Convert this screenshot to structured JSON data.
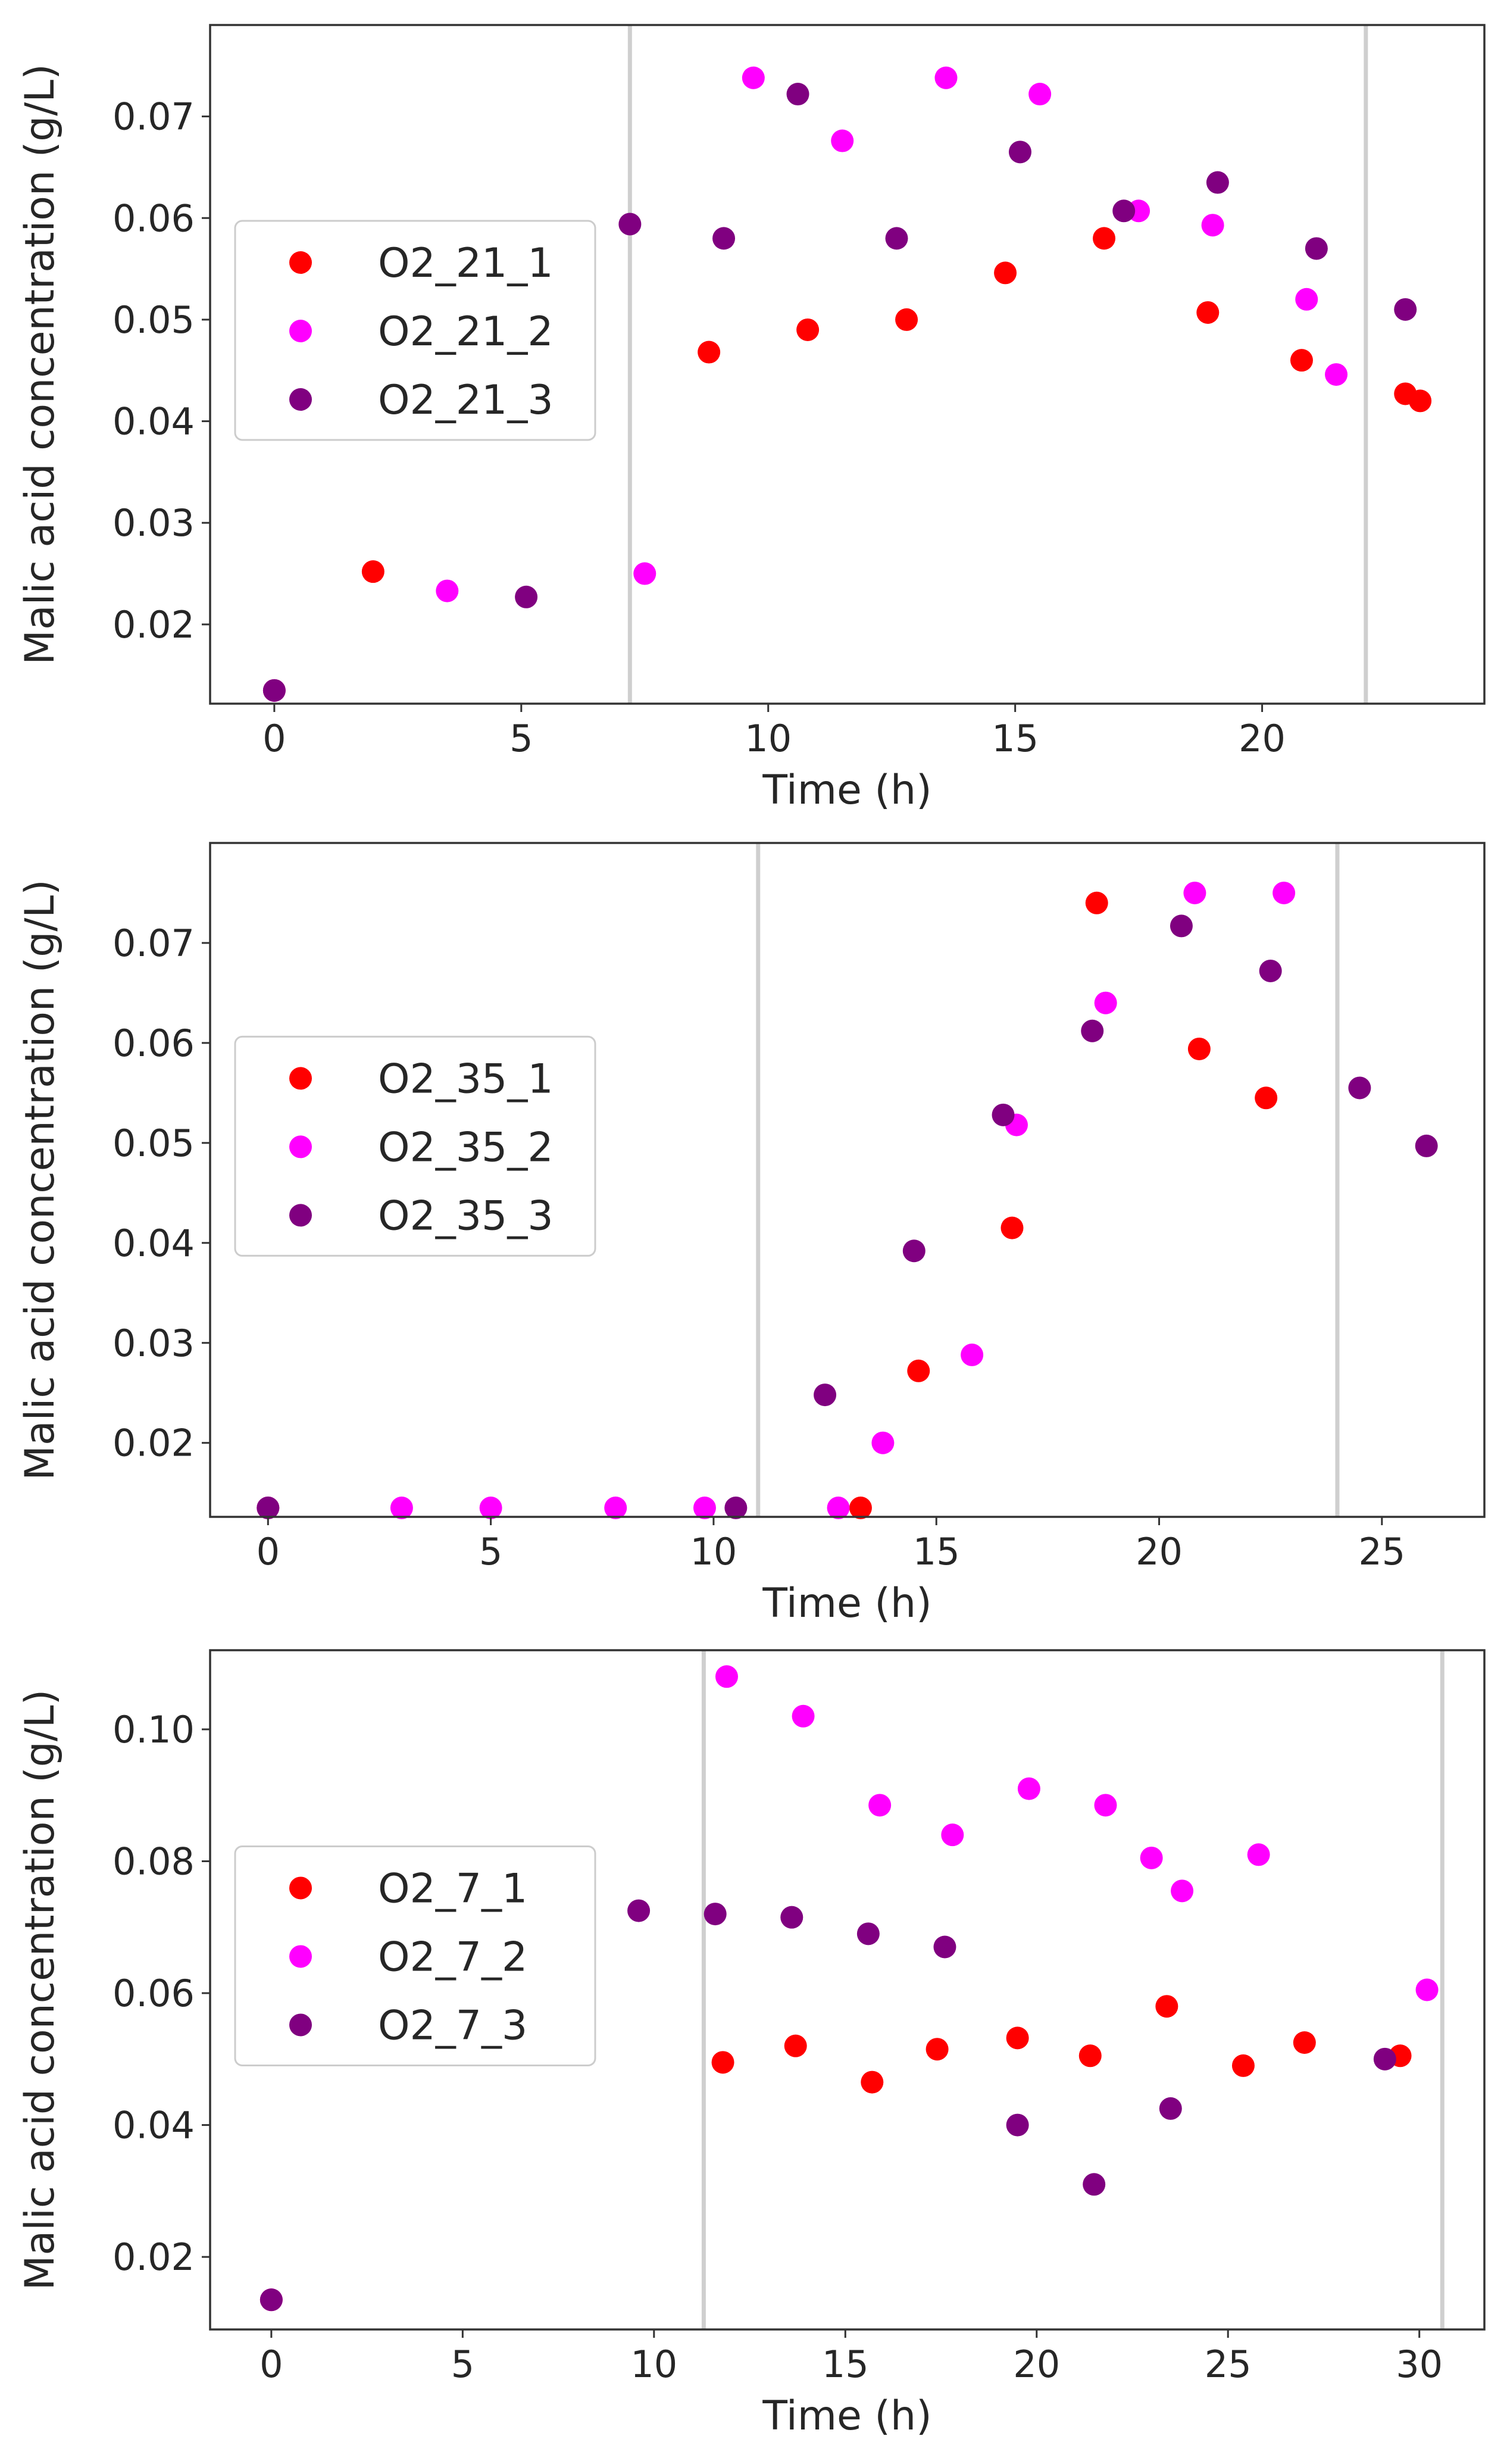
{
  "colors": {
    "series_1": "#ff0000",
    "series_2": "#ff00ff",
    "series_3": "#800080",
    "vline": "#cfcfcf"
  },
  "chart_data": [
    {
      "type": "scatter",
      "xlabel": "Time (h)",
      "ylabel": "Malic acid concentration (g/L)",
      "xlim": [
        -1.3,
        24.5
      ],
      "ylim": [
        0.0122,
        0.079
      ],
      "xticks": [
        0,
        5,
        10,
        15,
        20
      ],
      "xtick_labels": [
        "0",
        "5",
        "10",
        "15",
        "20"
      ],
      "yticks": [
        0.02,
        0.03,
        0.04,
        0.05,
        0.06,
        0.07
      ],
      "ytick_labels": [
        "0.02",
        "0.03",
        "0.04",
        "0.05",
        "0.06",
        "0.07"
      ],
      "vlines": [
        7.2,
        22.1
      ],
      "legend_position": "center-left",
      "series": [
        {
          "name": "O2_21_1",
          "color": "#ff0000",
          "x": [
            0,
            2,
            8.8,
            10.8,
            12.8,
            14.8,
            16.8,
            18.9,
            20.8,
            22.9,
            23.2
          ],
          "y": [
            0.0135,
            0.0252,
            0.0468,
            0.049,
            0.05,
            0.0546,
            0.058,
            0.0507,
            0.046,
            0.0427,
            0.042
          ]
        },
        {
          "name": "O2_21_2",
          "color": "#ff00ff",
          "x": [
            0,
            3.5,
            7.5,
            9.7,
            11.5,
            13.6,
            15.5,
            17.5,
            19.0,
            20.9,
            21.5
          ],
          "y": [
            0.0135,
            0.0233,
            0.025,
            0.0738,
            0.0676,
            0.0738,
            0.0722,
            0.0607,
            0.0593,
            0.052,
            0.0446
          ]
        },
        {
          "name": "O2_21_3",
          "color": "#800080",
          "x": [
            0,
            5.1,
            7.2,
            9.1,
            10.6,
            12.6,
            15.1,
            17.2,
            19.1,
            21.1,
            22.9
          ],
          "y": [
            0.0135,
            0.0227,
            0.0594,
            0.058,
            0.0722,
            0.058,
            0.0665,
            0.0607,
            0.0635,
            0.057,
            0.051
          ]
        }
      ]
    },
    {
      "type": "scatter",
      "xlabel": "Time (h)",
      "ylabel": "Malic acid concentration (g/L)",
      "xlim": [
        -1.3,
        27.3
      ],
      "ylim": [
        0.0126,
        0.08
      ],
      "xticks": [
        0,
        5,
        10,
        15,
        20,
        25
      ],
      "xtick_labels": [
        "0",
        "5",
        "10",
        "15",
        "20",
        "25"
      ],
      "yticks": [
        0.02,
        0.03,
        0.04,
        0.05,
        0.06,
        0.07
      ],
      "ytick_labels": [
        "0.02",
        "0.03",
        "0.04",
        "0.05",
        "0.06",
        "0.07"
      ],
      "vlines": [
        11.0,
        24.0
      ],
      "legend_position": "center-left",
      "series": [
        {
          "name": "O2_35_1",
          "color": "#ff0000",
          "x": [
            0,
            13.3,
            14.6,
            16.7,
            18.6,
            20.9,
            22.4
          ],
          "y": [
            0.0135,
            0.0135,
            0.0272,
            0.0415,
            0.074,
            0.0594,
            0.0545
          ]
        },
        {
          "name": "O2_35_2",
          "color": "#ff00ff",
          "x": [
            0,
            3,
            5,
            7.8,
            9.8,
            12.8,
            13.8,
            15.8,
            16.8,
            18.8,
            20.8,
            22.8
          ],
          "y": [
            0.0135,
            0.0135,
            0.0135,
            0.0135,
            0.0135,
            0.0135,
            0.02,
            0.0288,
            0.0518,
            0.064,
            0.075,
            0.075
          ]
        },
        {
          "name": "O2_35_3",
          "color": "#800080",
          "x": [
            0,
            10.5,
            12.5,
            14.5,
            16.5,
            18.5,
            20.5,
            22.5,
            24.5,
            26.0
          ],
          "y": [
            0.0135,
            0.0135,
            0.0248,
            0.0392,
            0.0528,
            0.0612,
            0.0717,
            0.0672,
            0.0555,
            0.0497
          ]
        }
      ]
    },
    {
      "type": "scatter",
      "xlabel": "Time (h)",
      "ylabel": "Malic acid concentration (g/L)",
      "xlim": [
        -1.6,
        31.7
      ],
      "ylim": [
        0.009,
        0.112
      ],
      "xticks": [
        0,
        5,
        10,
        15,
        20,
        25,
        30
      ],
      "xtick_labels": [
        "0",
        "5",
        "10",
        "15",
        "20",
        "25",
        "30"
      ],
      "yticks": [
        0.02,
        0.04,
        0.06,
        0.08,
        0.1
      ],
      "ytick_labels": [
        "0.02",
        "0.04",
        "0.06",
        "0.08",
        "0.10"
      ],
      "vlines": [
        11.3,
        30.6
      ],
      "legend_position": "center-left",
      "series": [
        {
          "name": "O2_7_1",
          "color": "#ff0000",
          "x": [
            0,
            11.8,
            13.7,
            15.7,
            17.4,
            19.5,
            21.4,
            23.4,
            25.4,
            27.0,
            29.5
          ],
          "y": [
            0.0135,
            0.0495,
            0.052,
            0.0465,
            0.0515,
            0.0532,
            0.0505,
            0.058,
            0.049,
            0.0525,
            0.0505
          ]
        },
        {
          "name": "O2_7_2",
          "color": "#ff00ff",
          "x": [
            0,
            11.9,
            13.9,
            15.9,
            17.8,
            19.8,
            21.8,
            23.0,
            23.8,
            25.8,
            30.2
          ],
          "y": [
            0.0135,
            0.108,
            0.102,
            0.0885,
            0.084,
            0.091,
            0.0885,
            0.0805,
            0.0755,
            0.081,
            0.0605
          ]
        },
        {
          "name": "O2_7_3",
          "color": "#800080",
          "x": [
            0,
            9.6,
            11.6,
            13.6,
            15.6,
            17.6,
            19.5,
            21.5,
            23.5,
            29.1
          ],
          "y": [
            0.0135,
            0.0725,
            0.072,
            0.0715,
            0.069,
            0.067,
            0.04,
            0.031,
            0.0425,
            0.05
          ]
        }
      ]
    }
  ]
}
